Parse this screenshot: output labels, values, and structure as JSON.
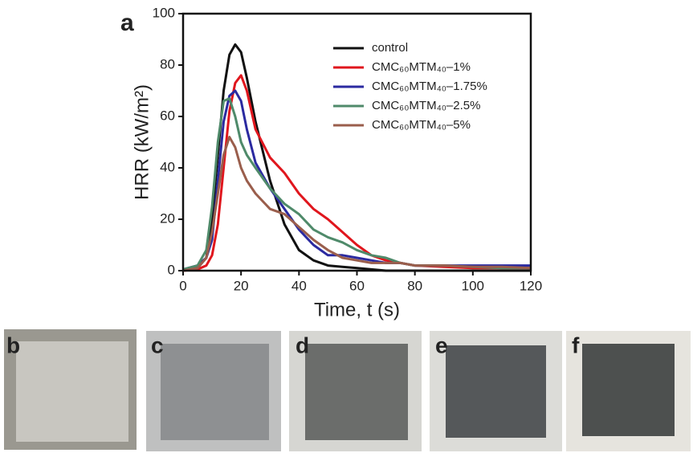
{
  "panel_label": "a",
  "photo_labels": [
    "b",
    "c",
    "d",
    "e",
    "f"
  ],
  "chart_data": {
    "type": "line",
    "x_label": "Time, t (s)",
    "y_label": "HRR (kW/m²)",
    "x": [
      0,
      5,
      8,
      10,
      12,
      14,
      16,
      18,
      20,
      22,
      25,
      30,
      35,
      40,
      45,
      50,
      55,
      60,
      65,
      70,
      75,
      80,
      90,
      100,
      110,
      120
    ],
    "series": [
      {
        "name": "control",
        "color": "#111111",
        "values": [
          0,
          1,
          5,
          20,
          45,
          70,
          84,
          88,
          85,
          75,
          58,
          35,
          18,
          8,
          4,
          2,
          1.5,
          1,
          0.5,
          0,
          0,
          0,
          0,
          0,
          0,
          0
        ]
      },
      {
        "name": "CMC₆₀MTM₄₀–1%",
        "color": "#e0161d",
        "values": [
          0,
          0.5,
          2,
          6,
          18,
          40,
          62,
          73,
          76,
          70,
          55,
          44,
          38,
          30,
          24,
          20,
          15,
          10,
          6,
          4,
          3,
          2,
          1.5,
          1,
          1,
          1
        ]
      },
      {
        "name": "CMC₆₀MTM₄₀–1.75%",
        "color": "#2b2aa0",
        "values": [
          0.5,
          2,
          5,
          12,
          35,
          58,
          68,
          70,
          66,
          55,
          42,
          32,
          24,
          16,
          10,
          6,
          6,
          5,
          4,
          3,
          3,
          2,
          2,
          2,
          2,
          2
        ]
      },
      {
        "name": "CMC₆₀MTM₄₀–2.5%",
        "color": "#4f8a6a",
        "values": [
          0.5,
          2,
          8,
          25,
          50,
          66,
          67,
          60,
          50,
          45,
          40,
          32,
          26,
          22,
          16,
          13,
          11,
          8,
          6,
          5,
          3,
          2,
          2,
          1.5,
          1,
          1
        ]
      },
      {
        "name": "CMC₆₀MTM₄₀–5%",
        "color": "#9a5e4c",
        "values": [
          0,
          1,
          5,
          15,
          30,
          45,
          52,
          48,
          40,
          35,
          30,
          24,
          22,
          17,
          12,
          8,
          5,
          4,
          3,
          3,
          3,
          2,
          2,
          1.5,
          1.5,
          1
        ]
      }
    ],
    "xlim": [
      0,
      120
    ],
    "xticks": [
      0,
      20,
      40,
      60,
      80,
      100,
      120
    ],
    "ylim": [
      0,
      100
    ],
    "yticks": [
      0,
      20,
      40,
      60,
      80,
      100
    ],
    "legend": "upper right"
  }
}
